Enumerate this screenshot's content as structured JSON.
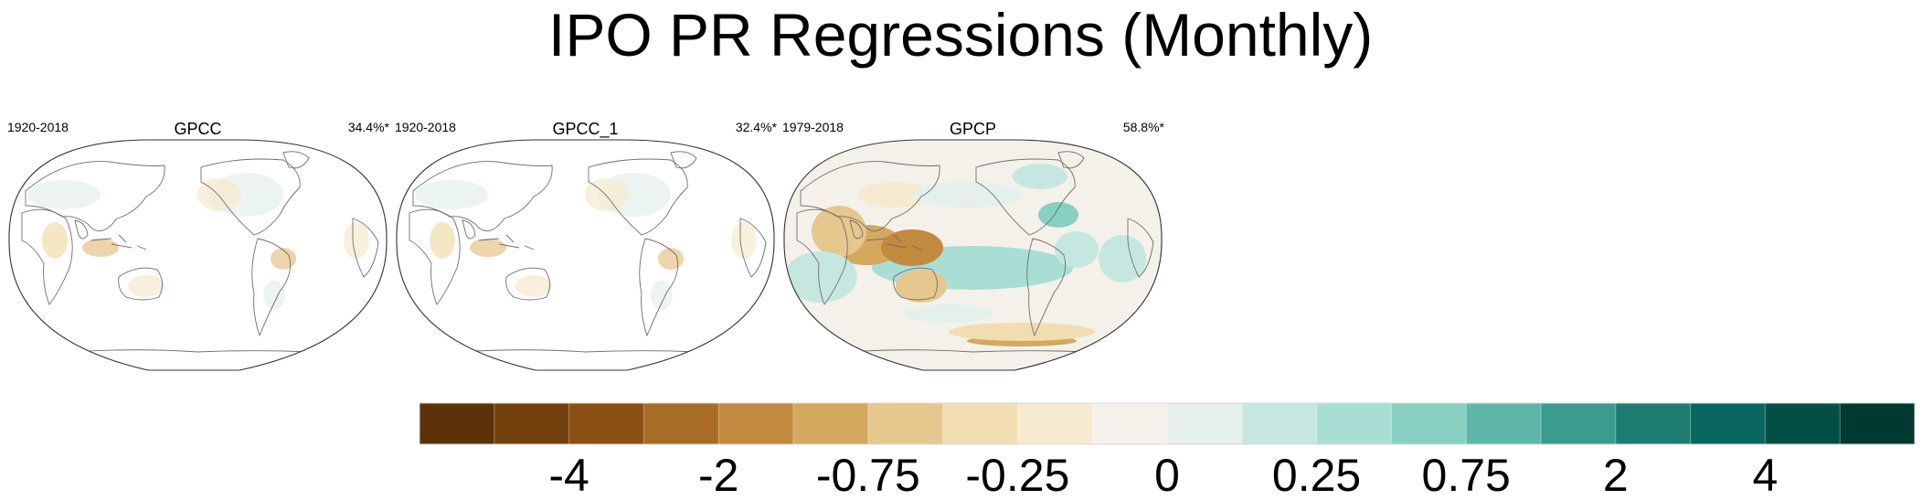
{
  "chart_data": {
    "type": "heatmap",
    "title": "IPO PR Regressions (Monthly)",
    "panels": [
      {
        "name": "GPCC",
        "period": "1920-2018",
        "variance_explained": "34.4%*",
        "intensity": 0.45,
        "coverage": "land"
      },
      {
        "name": "GPCC_1",
        "period": "1920-2018",
        "variance_explained": "32.4%*",
        "intensity": 0.4,
        "coverage": "land"
      },
      {
        "name": "GPCP",
        "period": "1979-2018",
        "variance_explained": "58.8%*",
        "intensity": 1.0,
        "coverage": "global"
      }
    ],
    "colorbar": {
      "colors": [
        "#5b3108",
        "#73400d",
        "#8b5113",
        "#a86c26",
        "#c28a3e",
        "#d5a85f",
        "#e6c78d",
        "#f1ddb1",
        "#f6ead0",
        "#f4f1ea",
        "#e5f0ec",
        "#c6e7e0",
        "#a9ded5",
        "#88d0c2",
        "#5fb7a9",
        "#3c9b90",
        "#1e7d73",
        "#08665e",
        "#034f46",
        "#00392f"
      ],
      "tick_labels": [
        "-4",
        "-2",
        "-0.75",
        "-0.25",
        "0",
        "0.25",
        "0.75",
        "2",
        "4"
      ],
      "tick_boundaries": [
        2,
        4,
        6,
        8,
        10,
        12,
        14,
        16,
        18
      ]
    }
  }
}
